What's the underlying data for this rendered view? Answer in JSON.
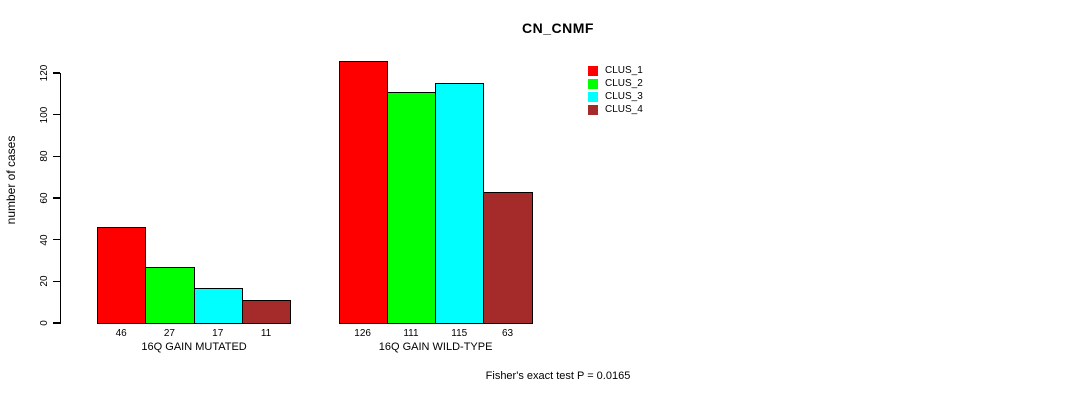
{
  "chart_data": {
    "type": "bar",
    "title": "CN_CNMF",
    "ylabel": "number of cases",
    "xlabel": "",
    "ylim": [
      0,
      126
    ],
    "yticks": [
      0,
      20,
      40,
      60,
      80,
      100,
      120
    ],
    "grid": false,
    "legend_position": "top-right",
    "categories": [
      "16Q GAIN MUTATED",
      "16Q GAIN WILD-TYPE"
    ],
    "series": [
      {
        "name": "CLUS_1",
        "color": "#ff0000",
        "values": [
          46,
          126
        ]
      },
      {
        "name": "CLUS_2",
        "color": "#00ff00",
        "values": [
          27,
          111
        ]
      },
      {
        "name": "CLUS_3",
        "color": "#00ffff",
        "values": [
          17,
          115
        ]
      },
      {
        "name": "CLUS_4",
        "color": "#a52a2a",
        "values": [
          11,
          63
        ]
      }
    ],
    "bar_labels": [
      [
        46,
        27,
        17,
        11
      ],
      [
        126,
        111,
        115,
        63
      ]
    ],
    "annotation": "Fisher's exact test P = 0.0165"
  }
}
